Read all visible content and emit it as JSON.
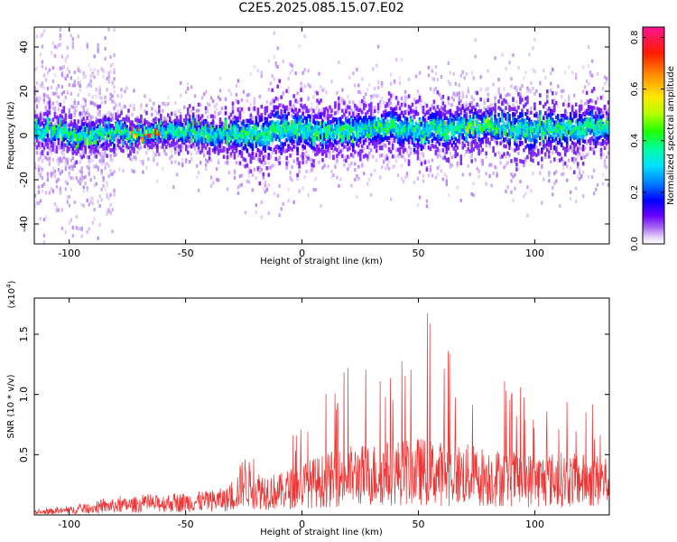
{
  "title": "C2E5.2025.085.15.07.E02",
  "chart_data": [
    {
      "type": "heatmap",
      "xlabel": "Height of straight line (km)",
      "ylabel": "Frequency (Hz)",
      "xlim": [
        -115,
        132
      ],
      "ylim": [
        -49,
        49
      ],
      "x_ticks": [
        -100,
        -50,
        0,
        50,
        100
      ],
      "x_tick_labels": [
        "-100",
        "-50",
        "0",
        "50",
        "100"
      ],
      "y_ticks": [
        -40,
        -20,
        0,
        20,
        40
      ],
      "y_tick_labels": [
        "-40",
        "-20",
        "0",
        "20",
        "40"
      ],
      "colorbar": {
        "label": "Normalized spectral amplitude",
        "range": [
          0,
          0.84
        ],
        "ticks": [
          0.0,
          0.2,
          0.4,
          0.6,
          0.8
        ],
        "tick_labels": [
          "0.0",
          "0.2",
          "0.4",
          "0.6",
          "0.8"
        ],
        "colors": [
          "#ffffff",
          "#e8d4f8",
          "#a060f0",
          "#6a00ff",
          "#0000ff",
          "#00a0ff",
          "#00ffc8",
          "#3cff00",
          "#c8ff00",
          "#ffe600",
          "#ff8c00",
          "#ff0000",
          "#ff0090",
          "#ff1493"
        ]
      },
      "spectral_ridge": {
        "x": [
          -115,
          -100,
          -90,
          -80,
          -70,
          -60,
          -50,
          -40,
          -30,
          -20,
          -10,
          0,
          10,
          20,
          30,
          40,
          50,
          60,
          70,
          80,
          90,
          100,
          110,
          120,
          132
        ],
        "center_hz": [
          2,
          1,
          0,
          2,
          1,
          1,
          2,
          1,
          0,
          1,
          2,
          3,
          2,
          2,
          3,
          4,
          2,
          3,
          4,
          5,
          3,
          2,
          3,
          4,
          3
        ],
        "half_width_hz": [
          6,
          6,
          6,
          6,
          5,
          5,
          6,
          6,
          8,
          10,
          11,
          10,
          8,
          8,
          8,
          9,
          9,
          9,
          9,
          8,
          9,
          11,
          9,
          9,
          8
        ]
      },
      "grid": false,
      "legend": "colorbar right"
    },
    {
      "type": "line",
      "xlabel": "Height of straight line (km)",
      "ylabel": "SNR (10 * v/v)",
      "y_multiplier_label": "(x10^4)",
      "xlim": [
        -115,
        132
      ],
      "ylim": [
        0,
        1.8
      ],
      "x_ticks": [
        -100,
        -50,
        0,
        50,
        100
      ],
      "x_tick_labels": [
        "-100",
        "-50",
        "0",
        "50",
        "100"
      ],
      "y_ticks": [
        0.5,
        1.0,
        1.5
      ],
      "y_tick_labels": [
        "0.5",
        "1.0",
        "1.5"
      ],
      "series": [
        {
          "color": "#ee3333",
          "x": [
            -115,
            -100,
            -80,
            -60,
            -40,
            -30,
            -25,
            -20,
            -10,
            0,
            10,
            20,
            30,
            40,
            50,
            60,
            70,
            80,
            90,
            100,
            110,
            120,
            132
          ],
          "mean": [
            0.02,
            0.04,
            0.08,
            0.1,
            0.12,
            0.14,
            0.3,
            0.22,
            0.2,
            0.26,
            0.3,
            0.34,
            0.35,
            0.37,
            0.38,
            0.36,
            0.35,
            0.33,
            0.32,
            0.3,
            0.31,
            0.3,
            0.3
          ],
          "peak": [
            0.05,
            0.08,
            0.16,
            0.18,
            0.2,
            0.28,
            0.85,
            0.6,
            0.7,
            0.85,
            1.0,
            1.33,
            1.2,
            1.35,
            1.78,
            1.6,
            1.35,
            1.25,
            1.1,
            1.05,
            1.0,
            0.95,
            0.92
          ]
        }
      ],
      "grid": false
    }
  ]
}
